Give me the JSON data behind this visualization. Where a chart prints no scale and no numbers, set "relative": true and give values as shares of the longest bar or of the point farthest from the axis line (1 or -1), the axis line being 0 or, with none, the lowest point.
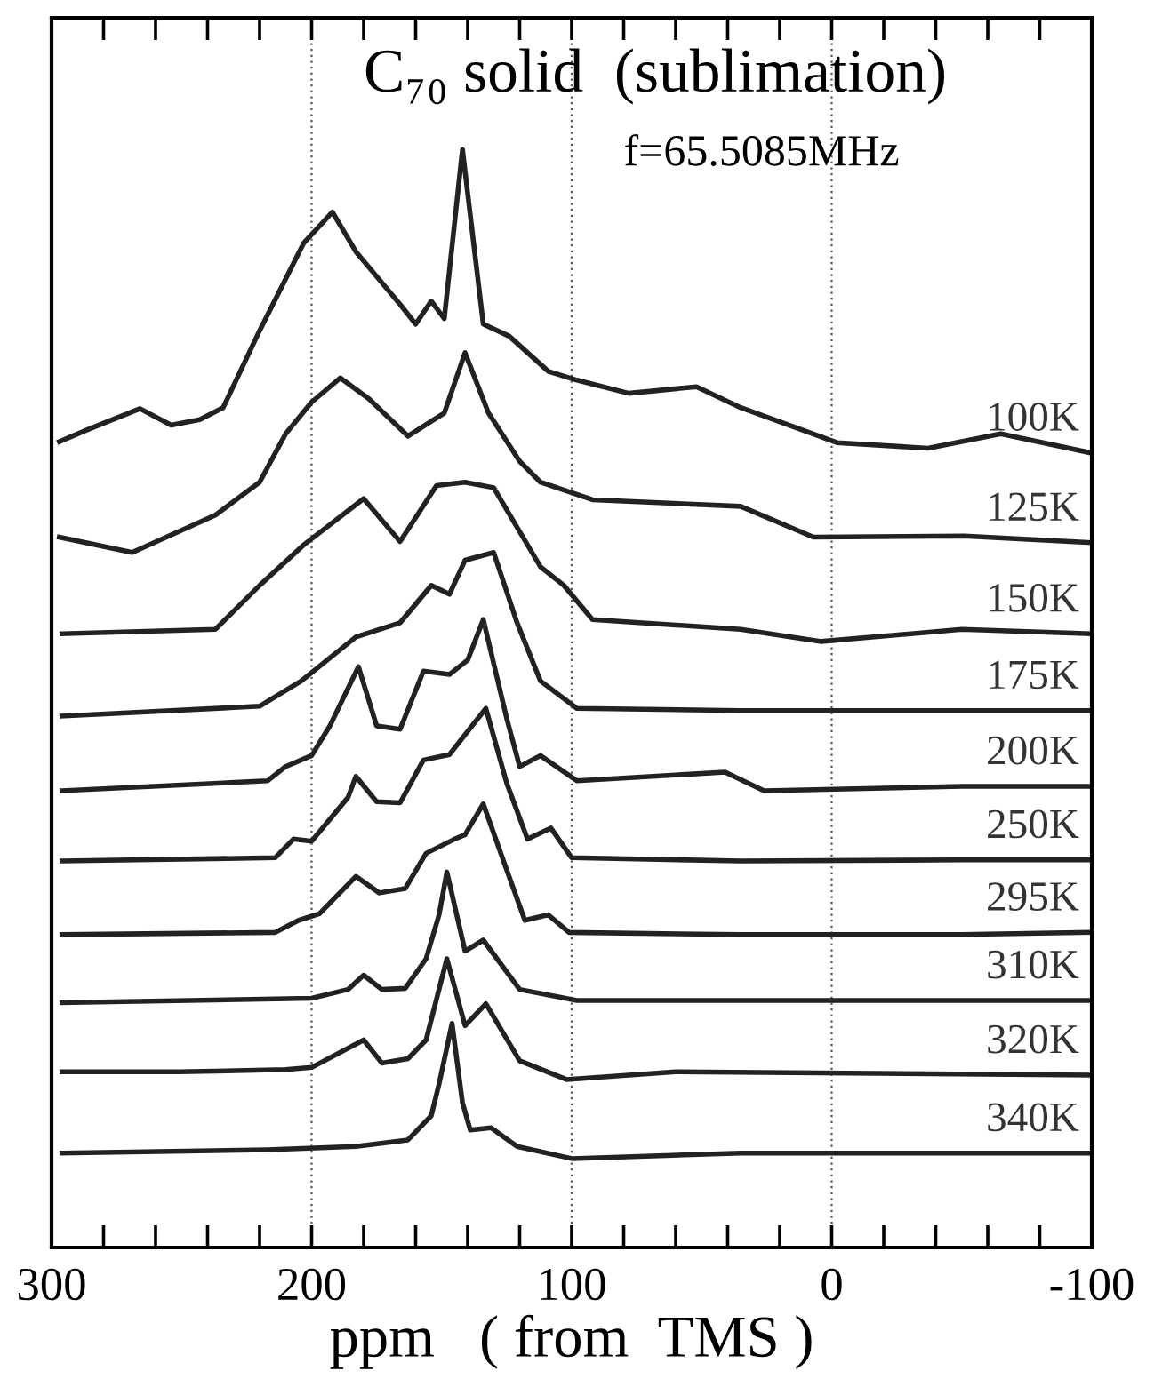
{
  "chart_data": {
    "type": "line",
    "relative": true,
    "title": "C₇₀ solid  (sublimation)",
    "xlabel": "ppm   ( from  TMS )",
    "annotations": [
      "f=65.5085MHz"
    ],
    "xlim": [
      300,
      -100
    ],
    "xticks": [
      300,
      {
        "value": 280,
        "label": null
      },
      {
        "value": 260,
        "label": null
      },
      {
        "value": 240,
        "label": null
      },
      {
        "value": 220,
        "label": null
      },
      200,
      {
        "value": 180,
        "label": null
      },
      {
        "value": 160,
        "label": null
      },
      {
        "value": 140,
        "label": null
      },
      {
        "value": 120,
        "label": null
      },
      100,
      {
        "value": 80,
        "label": null
      },
      {
        "value": 60,
        "label": null
      },
      {
        "value": 40,
        "label": null
      },
      {
        "value": 20,
        "label": null
      },
      0,
      {
        "value": -20,
        "label": null
      },
      {
        "value": -40,
        "label": null
      },
      {
        "value": -60,
        "label": null
      },
      {
        "value": -80,
        "label": null
      },
      -100
    ],
    "grid": "x",
    "line_style": "solid",
    "marker": "none",
    "tick_labels": "x",
    "series": [
      {
        "name": "100K",
        "color": "#222222",
        "x": [
          297,
          286,
          266,
          254,
          243,
          234,
          220,
          203,
          192,
          183,
          166,
          160,
          154,
          149,
          142,
          134,
          124,
          109,
          98,
          78,
          52,
          35,
          -2,
          -37,
          -65,
          -99
        ],
        "values": [
          0.734,
          0.745,
          0.764,
          0.749,
          0.754,
          0.765,
          0.835,
          0.915,
          0.943,
          0.907,
          0.859,
          0.841,
          0.862,
          0.846,
          1.0,
          0.841,
          0.83,
          0.798,
          0.79,
          0.778,
          0.784,
          0.765,
          0.733,
          0.728,
          0.741,
          0.724
        ]
      },
      {
        "name": "125K",
        "color": "#222222",
        "x": [
          297,
          269,
          237,
          220,
          210,
          200,
          189,
          178,
          163,
          149,
          141,
          132,
          120,
          112,
          92,
          35,
          7,
          -51,
          -99
        ],
        "values": [
          0.647,
          0.633,
          0.667,
          0.697,
          0.741,
          0.77,
          0.792,
          0.773,
          0.739,
          0.76,
          0.815,
          0.76,
          0.716,
          0.697,
          0.681,
          0.675,
          0.647,
          0.648,
          0.642
        ]
      },
      {
        "name": "150K",
        "color": "#222222",
        "x": [
          296,
          237,
          220,
          203,
          180,
          166,
          152,
          141,
          130,
          120,
          112,
          103,
          92,
          35,
          4,
          -50,
          -99
        ],
        "values": [
          0.559,
          0.563,
          0.603,
          0.64,
          0.682,
          0.643,
          0.694,
          0.697,
          0.692,
          0.652,
          0.62,
          0.603,
          0.572,
          0.563,
          0.552,
          0.563,
          0.559
        ]
      },
      {
        "name": "175K",
        "color": "#222222",
        "x": [
          296,
          220,
          204,
          183,
          166,
          154,
          147,
          141,
          130,
          121,
          112,
          98,
          35,
          -50,
          -99
        ],
        "values": [
          0.484,
          0.493,
          0.516,
          0.556,
          0.569,
          0.603,
          0.595,
          0.626,
          0.633,
          0.569,
          0.516,
          0.491,
          0.489,
          0.489,
          0.489
        ]
      },
      {
        "name": "200K",
        "color": "#222222",
        "x": [
          296,
          217,
          210,
          200,
          193,
          182,
          175,
          166,
          157,
          147,
          140,
          134,
          125,
          120,
          112,
          98,
          41,
          26,
          -50,
          -99
        ],
        "values": [
          0.416,
          0.425,
          0.438,
          0.448,
          0.475,
          0.529,
          0.475,
          0.472,
          0.525,
          0.522,
          0.535,
          0.572,
          0.482,
          0.438,
          0.448,
          0.425,
          0.433,
          0.416,
          0.42,
          0.42
        ]
      },
      {
        "name": "250K",
        "color": "#222222",
        "x": [
          296,
          214,
          207,
          200,
          186,
          183,
          175,
          166,
          157,
          147,
          133,
          125,
          117,
          108,
          100,
          35,
          -50,
          -99
        ],
        "values": [
          0.352,
          0.355,
          0.372,
          0.37,
          0.41,
          0.429,
          0.406,
          0.405,
          0.444,
          0.449,
          0.491,
          0.423,
          0.372,
          0.382,
          0.355,
          0.352,
          0.353,
          0.353
        ]
      },
      {
        "name": "295K",
        "color": "#222222",
        "x": [
          296,
          214,
          205,
          197,
          183,
          174,
          164,
          156,
          145,
          141,
          134,
          125,
          118,
          109,
          101,
          35,
          -50,
          -99
        ],
        "values": [
          0.285,
          0.287,
          0.298,
          0.304,
          0.338,
          0.323,
          0.327,
          0.359,
          0.372,
          0.376,
          0.404,
          0.344,
          0.298,
          0.303,
          0.287,
          0.285,
          0.285,
          0.287
        ]
      },
      {
        "name": "310K",
        "color": "#222222",
        "x": [
          296,
          200,
          186,
          180,
          173,
          164,
          156,
          151,
          148,
          141,
          134,
          120,
          98,
          -99
        ],
        "values": [
          0.223,
          0.227,
          0.235,
          0.248,
          0.235,
          0.236,
          0.263,
          0.303,
          0.342,
          0.27,
          0.28,
          0.235,
          0.225,
          0.225
        ]
      },
      {
        "name": "320K",
        "color": "#222222",
        "x": [
          296,
          251,
          210,
          200,
          180,
          173,
          163,
          156,
          148,
          141,
          133,
          120,
          102,
          60,
          -99
        ],
        "values": [
          0.16,
          0.16,
          0.162,
          0.164,
          0.189,
          0.168,
          0.172,
          0.189,
          0.263,
          0.202,
          0.222,
          0.17,
          0.153,
          0.16,
          0.157
        ]
      },
      {
        "name": "340K",
        "color": "#222222",
        "x": [
          296,
          217,
          183,
          163,
          154,
          151,
          146,
          142,
          139,
          131,
          121,
          100,
          35,
          -99
        ],
        "values": [
          0.086,
          0.089,
          0.092,
          0.098,
          0.12,
          0.149,
          0.204,
          0.132,
          0.107,
          0.109,
          0.092,
          0.081,
          0.086,
          0.086
        ]
      }
    ]
  }
}
